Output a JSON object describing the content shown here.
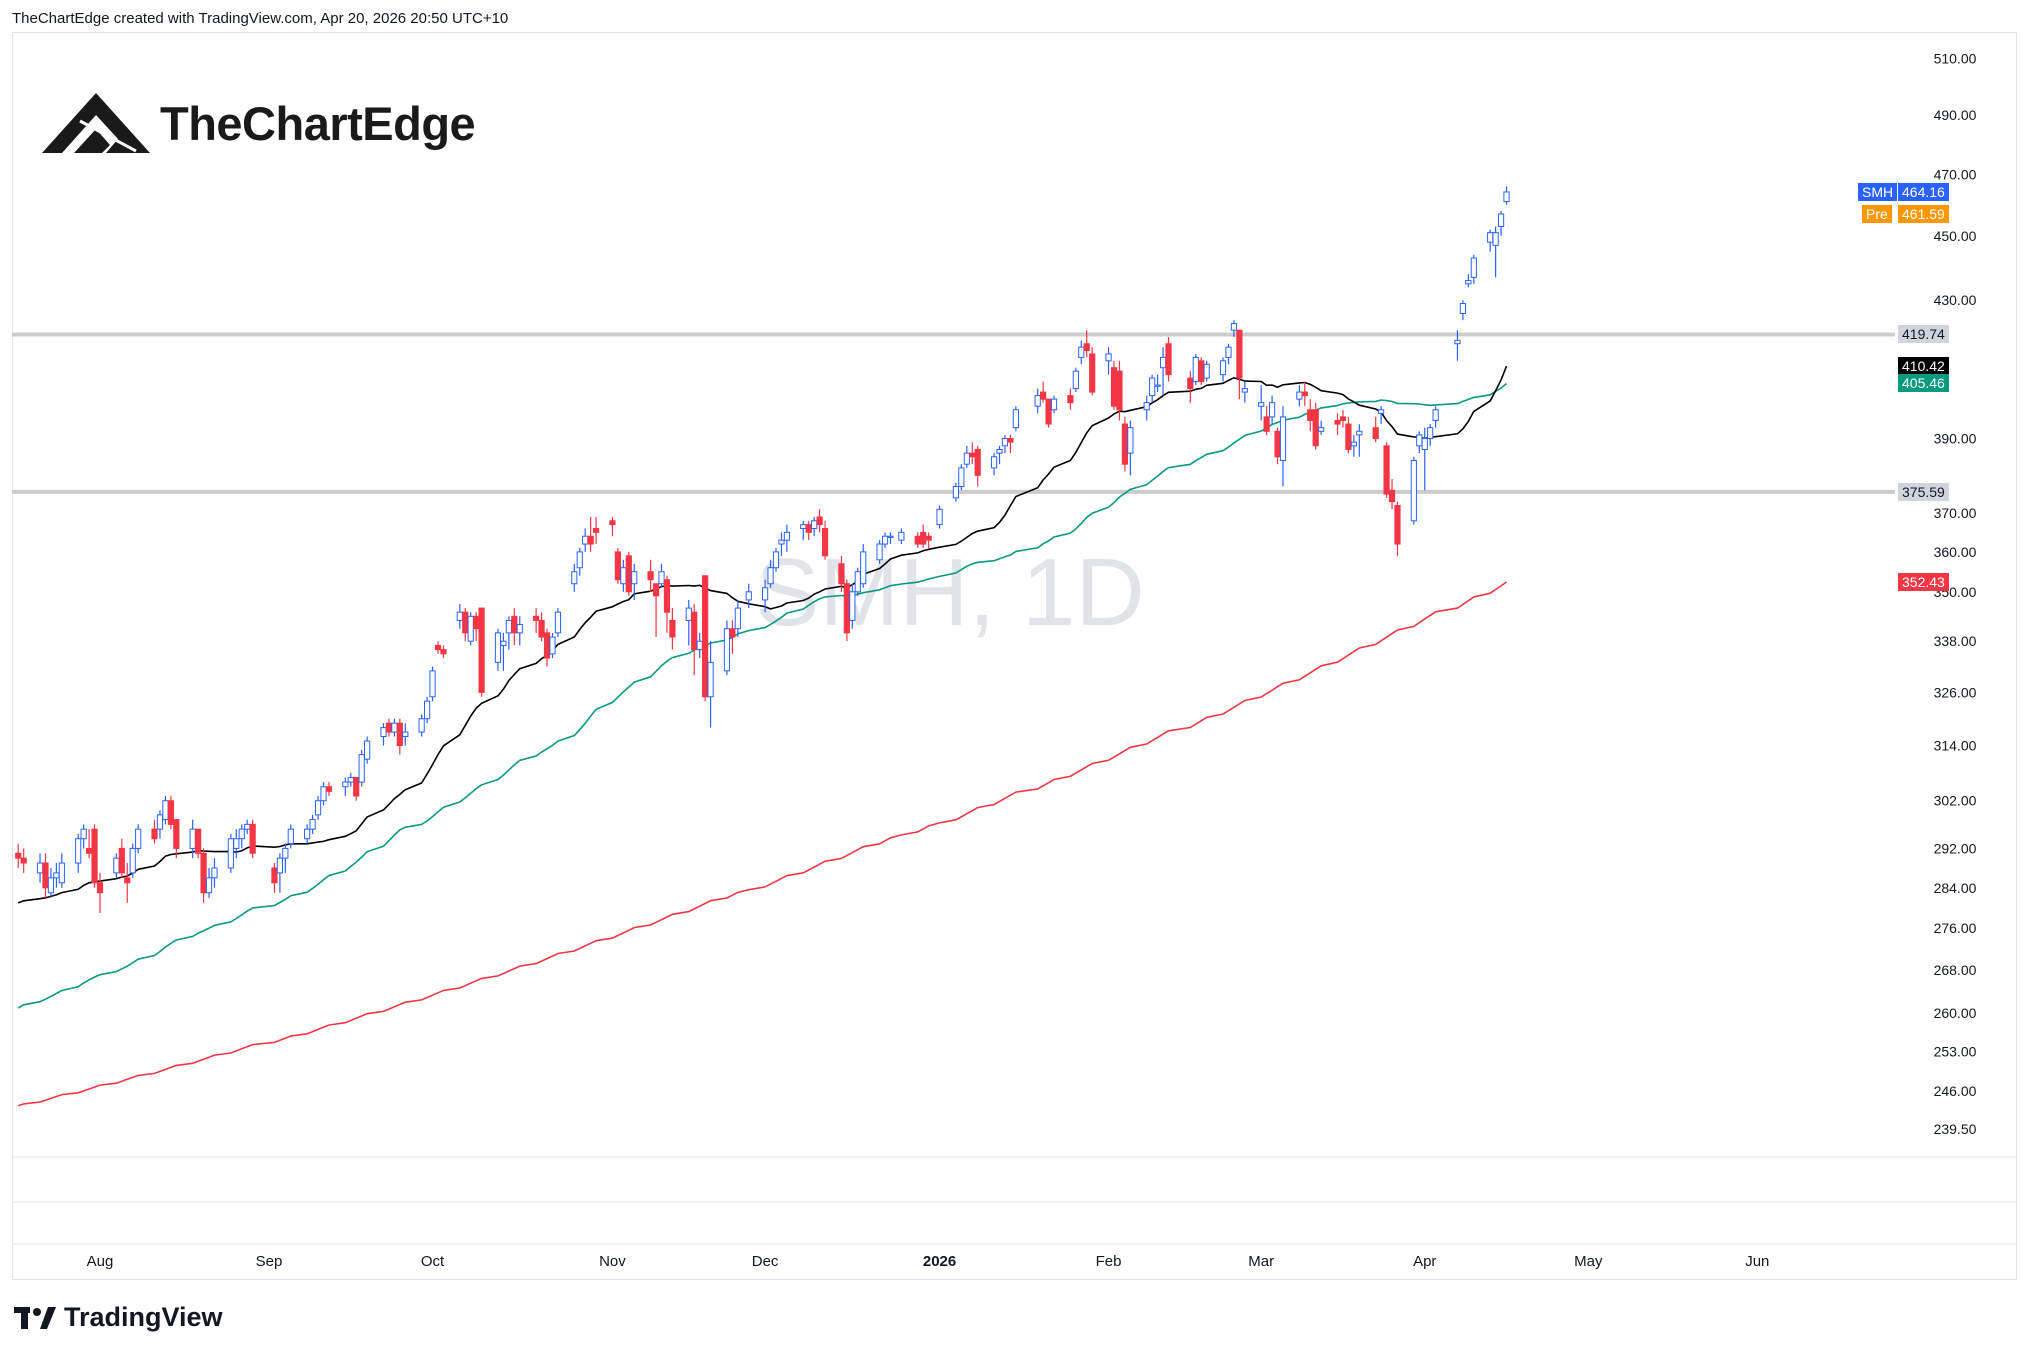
{
  "header": {
    "credit": "TheChartEdge created with TradingView.com, Apr 20, 2026 20:50 UTC+10"
  },
  "brand": {
    "name": "TheChartEdge",
    "icon": "mountain-logo-icon"
  },
  "footer": {
    "name": "TradingView",
    "icon": "tradingview-logo-icon"
  },
  "watermark": "SMH, 1D",
  "colors": {
    "up": "#2962ff",
    "down": "#f23645",
    "sma20": "#000000",
    "sma50": "#089981",
    "sma200": "#f23645",
    "hline": "#cccccc",
    "pre": "#ff9800",
    "label_gray": "#d1d4dc"
  },
  "price_tags": [
    {
      "label": "SMH",
      "value": "464.16",
      "color": "#2962ff"
    },
    {
      "label": "Pre",
      "value": "461.59",
      "color": "#ff9800"
    }
  ],
  "line_tags": [
    {
      "value": "419.74",
      "bg": "#d1d4dc",
      "fg": "#131722"
    },
    {
      "value": "410.42",
      "bg": "#000000",
      "fg": "#ffffff"
    },
    {
      "value": "405.46",
      "bg": "#089981",
      "fg": "#ffffff"
    },
    {
      "value": "375.59",
      "bg": "#d1d4dc",
      "fg": "#131722"
    },
    {
      "value": "352.43",
      "bg": "#f23645",
      "fg": "#ffffff"
    }
  ],
  "chart_data": {
    "type": "candlestick",
    "symbol": "SMH",
    "interval": "1D",
    "y_scale": "log",
    "ylim": [
      236,
      516
    ],
    "y_ticks": [
      "510.00",
      "490.00",
      "470.00",
      "450.00",
      "430.00",
      "390.00",
      "370.00",
      "360.00",
      "350.00",
      "338.00",
      "326.00",
      "314.00",
      "302.00",
      "292.00",
      "284.00",
      "276.00",
      "268.00",
      "260.00",
      "253.00",
      "246.00",
      "239.50"
    ],
    "x_ticks": [
      {
        "label": "Aug",
        "date": "2025-08-01"
      },
      {
        "label": "Sep",
        "date": "2025-09-01"
      },
      {
        "label": "Oct",
        "date": "2025-10-01"
      },
      {
        "label": "Nov",
        "date": "2025-11-03"
      },
      {
        "label": "Dec",
        "date": "2025-12-01"
      },
      {
        "label": "2026",
        "date": "2026-01-02",
        "bold": true
      },
      {
        "label": "Feb",
        "date": "2026-02-02"
      },
      {
        "label": "Mar",
        "date": "2026-03-02"
      },
      {
        "label": "Apr",
        "date": "2026-04-01"
      },
      {
        "label": "May",
        "date": "2026-05-01"
      },
      {
        "label": "Jun",
        "date": "2026-06-01"
      }
    ],
    "horizontal_levels": [
      419.74,
      375.59
    ],
    "candles": [
      [
        "2025-07-17",
        291,
        293,
        288,
        290
      ],
      [
        "2025-07-18",
        290,
        292,
        287,
        289
      ],
      [
        "2025-07-21",
        287,
        291,
        285,
        289
      ],
      [
        "2025-07-22",
        289,
        291,
        282,
        284
      ],
      [
        "2025-07-23",
        283,
        288,
        282,
        286
      ],
      [
        "2025-07-24",
        286,
        289,
        284,
        287
      ],
      [
        "2025-07-25",
        285,
        291,
        284,
        289
      ],
      [
        "2025-07-28",
        289,
        295,
        287,
        294
      ],
      [
        "2025-07-29",
        294,
        297,
        292,
        296
      ],
      [
        "2025-07-30",
        292,
        296,
        290,
        291
      ],
      [
        "2025-07-31",
        296,
        297,
        284,
        285
      ],
      [
        "2025-08-01",
        285,
        287,
        279,
        283
      ],
      [
        "2025-08-04",
        287,
        291,
        286,
        290
      ],
      [
        "2025-08-05",
        292,
        294,
        286,
        287
      ],
      [
        "2025-08-06",
        286,
        289,
        281,
        285
      ],
      [
        "2025-08-07",
        287,
        293,
        286,
        292
      ],
      [
        "2025-08-08",
        292,
        297,
        291,
        296
      ],
      [
        "2025-08-11",
        296,
        298,
        293,
        294
      ],
      [
        "2025-08-12",
        296,
        300,
        294,
        299
      ],
      [
        "2025-08-13",
        298,
        303,
        297,
        302
      ],
      [
        "2025-08-14",
        302,
        303,
        296,
        297
      ],
      [
        "2025-08-15",
        298,
        298,
        290,
        292
      ],
      [
        "2025-08-18",
        292,
        298,
        290,
        296
      ],
      [
        "2025-08-19",
        296,
        296,
        290,
        291
      ],
      [
        "2025-08-20",
        291,
        292,
        281,
        283
      ],
      [
        "2025-08-21",
        283,
        288,
        282,
        286
      ],
      [
        "2025-08-22",
        286,
        290,
        284,
        288
      ],
      [
        "2025-08-25",
        288,
        295,
        287,
        294
      ],
      [
        "2025-08-26",
        292,
        296,
        290,
        294
      ],
      [
        "2025-08-27",
        294,
        297,
        292,
        296
      ],
      [
        "2025-08-28",
        296,
        298,
        295,
        297
      ],
      [
        "2025-08-29",
        297,
        298,
        290,
        291
      ],
      [
        "2025-09-02",
        288,
        289,
        283,
        285
      ],
      [
        "2025-09-03",
        287,
        291,
        283,
        290
      ],
      [
        "2025-09-04",
        290,
        293,
        287,
        292
      ],
      [
        "2025-09-05",
        293,
        297,
        292,
        296
      ],
      [
        "2025-09-08",
        294,
        297,
        293,
        296
      ],
      [
        "2025-09-09",
        296,
        299,
        295,
        298
      ],
      [
        "2025-09-10",
        299,
        303,
        298,
        302
      ],
      [
        "2025-09-11",
        302,
        306,
        301,
        305
      ],
      [
        "2025-09-12",
        305,
        306,
        303,
        304
      ],
      [
        "2025-09-15",
        305,
        307,
        303,
        306
      ],
      [
        "2025-09-16",
        306,
        308,
        305,
        307
      ],
      [
        "2025-09-17",
        307,
        307,
        302,
        303
      ],
      [
        "2025-09-18",
        306,
        313,
        305,
        312
      ],
      [
        "2025-09-19",
        311,
        316,
        310,
        315
      ],
      [
        "2025-09-22",
        316,
        319,
        314,
        318
      ],
      [
        "2025-09-23",
        319,
        320,
        316,
        317
      ],
      [
        "2025-09-24",
        317,
        320,
        316,
        319
      ],
      [
        "2025-09-25",
        319,
        320,
        312,
        314
      ],
      [
        "2025-09-26",
        316,
        319,
        314,
        317
      ],
      [
        "2025-09-29",
        317,
        321,
        316,
        320
      ],
      [
        "2025-09-30",
        320,
        325,
        319,
        324
      ],
      [
        "2025-10-01",
        325,
        332,
        324,
        331
      ],
      [
        "2025-10-02",
        337,
        338,
        335,
        336
      ],
      [
        "2025-10-03",
        336,
        337,
        334,
        335
      ],
      [
        "2025-10-06",
        343,
        347,
        341,
        345
      ],
      [
        "2025-10-07",
        345,
        346,
        338,
        340
      ],
      [
        "2025-10-08",
        338,
        345,
        337,
        344
      ],
      [
        "2025-10-09",
        344,
        345,
        338,
        341
      ],
      [
        "2025-10-10",
        346,
        346,
        325,
        326
      ],
      [
        "2025-10-13",
        333,
        341,
        331,
        340
      ],
      [
        "2025-10-14",
        337,
        340,
        331,
        338
      ],
      [
        "2025-10-15",
        340,
        344,
        336,
        343
      ],
      [
        "2025-10-16",
        344,
        346,
        337,
        340
      ],
      [
        "2025-10-17",
        340,
        344,
        337,
        342
      ],
      [
        "2025-10-20",
        344,
        346,
        340,
        343
      ],
      [
        "2025-10-21",
        343,
        345,
        338,
        339
      ],
      [
        "2025-10-22",
        340,
        341,
        332,
        334
      ],
      [
        "2025-10-23",
        335,
        340,
        334,
        339
      ],
      [
        "2025-10-24",
        340,
        346,
        339,
        345
      ],
      [
        "2025-10-27",
        352,
        357,
        350,
        355
      ],
      [
        "2025-10-28",
        356,
        361,
        354,
        360
      ],
      [
        "2025-10-29",
        362,
        366,
        360,
        364
      ],
      [
        "2025-10-30",
        364,
        369,
        360,
        362
      ],
      [
        "2025-10-31",
        366,
        369,
        362,
        365
      ],
      [
        "2025-11-03",
        368,
        369,
        364,
        367
      ],
      [
        "2025-11-04",
        360,
        361,
        352,
        353
      ],
      [
        "2025-11-05",
        352,
        358,
        350,
        356
      ],
      [
        "2025-11-06",
        359,
        360,
        349,
        350
      ],
      [
        "2025-11-07",
        352,
        357,
        348,
        355
      ],
      [
        "2025-11-10",
        355,
        358,
        350,
        353
      ],
      [
        "2025-11-11",
        352,
        352,
        339,
        349
      ],
      [
        "2025-11-12",
        352,
        357,
        351,
        355
      ],
      [
        "2025-11-13",
        353,
        354,
        340,
        345
      ],
      [
        "2025-11-14",
        343,
        346,
        336,
        339
      ],
      [
        "2025-11-17",
        343,
        348,
        337,
        346
      ],
      [
        "2025-11-18",
        345,
        347,
        330,
        336
      ],
      [
        "2025-11-19",
        336,
        340,
        334,
        338
      ],
      [
        "2025-11-20",
        354,
        354,
        324,
        325
      ],
      [
        "2025-11-21",
        325,
        338,
        318,
        333
      ],
      [
        "2025-11-24",
        331,
        343,
        330,
        341
      ],
      [
        "2025-11-25",
        341,
        343,
        335,
        339
      ],
      [
        "2025-11-26",
        341,
        348,
        339,
        346
      ],
      [
        "2025-11-28",
        348,
        352,
        346,
        350
      ],
      [
        "2025-12-01",
        348,
        353,
        345,
        351
      ],
      [
        "2025-12-02",
        352,
        358,
        351,
        356
      ],
      [
        "2025-12-03",
        356,
        361,
        355,
        360
      ],
      [
        "2025-12-04",
        362,
        365,
        359,
        363
      ],
      [
        "2025-12-05",
        363,
        367,
        360,
        365
      ],
      [
        "2025-12-08",
        366,
        368,
        363,
        367
      ],
      [
        "2025-12-09",
        367,
        368,
        363,
        365
      ],
      [
        "2025-12-10",
        366,
        369,
        364,
        368
      ],
      [
        "2025-12-11",
        369,
        371,
        365,
        367
      ],
      [
        "2025-12-12",
        366,
        368,
        358,
        359
      ],
      [
        "2025-12-15",
        357,
        359,
        350,
        352
      ],
      [
        "2025-12-16",
        352,
        353,
        338,
        340
      ],
      [
        "2025-12-17",
        343,
        352,
        341,
        350
      ],
      [
        "2025-12-18",
        350,
        356,
        349,
        355
      ],
      [
        "2025-12-19",
        352,
        362,
        351,
        360
      ],
      [
        "2025-12-22",
        358,
        363,
        357,
        362
      ],
      [
        "2025-12-23",
        362,
        365,
        361,
        364
      ],
      [
        "2025-12-24",
        364,
        365,
        362,
        364
      ],
      [
        "2025-12-26",
        363,
        366,
        362,
        365
      ],
      [
        "2025-12-29",
        364,
        365,
        361,
        362
      ],
      [
        "2025-12-30",
        365,
        367,
        361,
        362
      ],
      [
        "2025-12-31",
        364,
        365,
        361,
        363
      ],
      [
        "2026-01-02",
        367,
        372,
        366,
        371
      ],
      [
        "2026-01-05",
        374,
        378,
        373,
        377
      ],
      [
        "2026-01-06",
        377,
        383,
        376,
        382
      ],
      [
        "2026-01-07",
        383,
        388,
        382,
        386
      ],
      [
        "2026-01-08",
        386,
        389,
        383,
        385
      ],
      [
        "2026-01-09",
        387,
        388,
        377,
        380
      ],
      [
        "2026-01-12",
        382,
        386,
        380,
        385
      ],
      [
        "2026-01-13",
        386,
        388,
        383,
        387
      ],
      [
        "2026-01-14",
        388,
        391,
        386,
        390
      ],
      [
        "2026-01-15",
        390,
        391,
        386,
        389
      ],
      [
        "2026-01-16",
        393,
        399,
        392,
        398
      ],
      [
        "2026-01-20",
        399,
        404,
        397,
        402
      ],
      [
        "2026-01-21",
        403,
        406,
        400,
        401
      ],
      [
        "2026-01-22",
        401,
        401,
        393,
        394
      ],
      [
        "2026-01-23",
        398,
        402,
        397,
        401
      ],
      [
        "2026-01-26",
        402,
        404,
        398,
        400
      ],
      [
        "2026-01-27",
        404,
        410,
        403,
        409
      ],
      [
        "2026-01-28",
        413,
        418,
        411,
        416
      ],
      [
        "2026-01-29",
        417,
        421,
        413,
        415
      ],
      [
        "2026-01-30",
        414,
        416,
        402,
        403
      ],
      [
        "2026-02-02",
        412,
        416,
        408,
        414
      ],
      [
        "2026-02-03",
        410,
        412,
        398,
        399
      ],
      [
        "2026-02-04",
        409,
        412,
        395,
        398
      ],
      [
        "2026-02-05",
        394,
        396,
        381,
        383
      ],
      [
        "2026-02-06",
        386,
        395,
        380,
        393
      ],
      [
        "2026-02-09",
        398,
        402,
        395,
        400
      ],
      [
        "2026-02-10",
        402,
        408,
        400,
        407
      ],
      [
        "2026-02-11",
        405,
        408,
        403,
        405
      ],
      [
        "2026-02-12",
        410,
        416,
        402,
        413
      ],
      [
        "2026-02-13",
        417,
        419,
        406,
        408
      ],
      [
        "2026-02-17",
        407,
        409,
        400,
        404
      ],
      [
        "2026-02-18",
        406,
        414,
        405,
        413
      ],
      [
        "2026-02-19",
        412,
        413,
        405,
        406
      ],
      [
        "2026-02-20",
        407,
        412,
        406,
        411
      ],
      [
        "2026-02-23",
        408,
        413,
        406,
        412
      ],
      [
        "2026-02-24",
        413,
        417,
        411,
        416
      ],
      [
        "2026-02-25",
        421,
        424,
        419,
        423
      ],
      [
        "2026-02-26",
        421,
        421,
        401,
        407
      ],
      [
        "2026-02-27",
        403,
        406,
        400,
        404
      ],
      [
        "2026-03-02",
        399,
        405,
        395,
        400
      ],
      [
        "2026-03-03",
        396,
        399,
        391,
        392
      ],
      [
        "2026-03-04",
        396,
        402,
        394,
        400
      ],
      [
        "2026-03-05",
        392,
        393,
        383,
        385
      ],
      [
        "2026-03-06",
        384,
        399,
        377,
        396
      ],
      [
        "2026-03-09",
        401,
        405,
        399,
        403
      ],
      [
        "2026-03-10",
        403,
        406,
        399,
        402
      ],
      [
        "2026-03-11",
        398,
        401,
        392,
        395
      ],
      [
        "2026-03-12",
        398,
        400,
        387,
        388
      ],
      [
        "2026-03-13",
        392,
        395,
        391,
        393
      ],
      [
        "2026-03-16",
        395,
        397,
        391,
        394
      ],
      [
        "2026-03-17",
        396,
        398,
        393,
        395
      ],
      [
        "2026-03-18",
        394,
        396,
        386,
        387
      ],
      [
        "2026-03-19",
        388,
        391,
        385,
        389
      ],
      [
        "2026-03-20",
        391,
        394,
        385,
        392
      ],
      [
        "2026-03-23",
        393,
        396,
        389,
        390
      ],
      [
        "2026-03-24",
        397,
        399,
        394,
        398
      ],
      [
        "2026-03-25",
        388,
        389,
        374,
        375
      ],
      [
        "2026-03-26",
        376,
        379,
        371,
        373
      ],
      [
        "2026-03-27",
        372,
        373,
        359,
        362
      ],
      [
        "2026-03-30",
        368,
        385,
        367,
        384
      ],
      [
        "2026-03-31",
        388,
        392,
        386,
        391
      ],
      [
        "2026-04-01",
        387,
        393,
        376,
        390
      ],
      [
        "2026-04-02",
        390,
        394,
        388,
        393
      ],
      [
        "2026-04-03",
        395,
        399,
        393,
        398
      ],
      [
        "2026-04-07",
        417,
        421,
        412,
        418
      ],
      [
        "2026-04-08",
        426,
        430,
        424,
        429
      ],
      [
        "2026-04-09",
        435,
        438,
        434,
        436
      ],
      [
        "2026-04-10",
        437,
        444,
        435,
        443
      ],
      [
        "2026-04-13",
        448,
        452,
        445,
        451
      ],
      [
        "2026-04-14",
        447,
        453,
        437,
        451
      ],
      [
        "2026-04-15",
        453,
        458,
        450,
        457
      ],
      [
        "2026-04-16",
        461,
        466,
        460,
        464.16
      ]
    ],
    "sma20_current": 410.42,
    "sma50_current": 405.46,
    "sma200_current": 352.43,
    "sma20_start": 280.5,
    "sma50_start": 260.3,
    "sma200_start": 243.5
  }
}
